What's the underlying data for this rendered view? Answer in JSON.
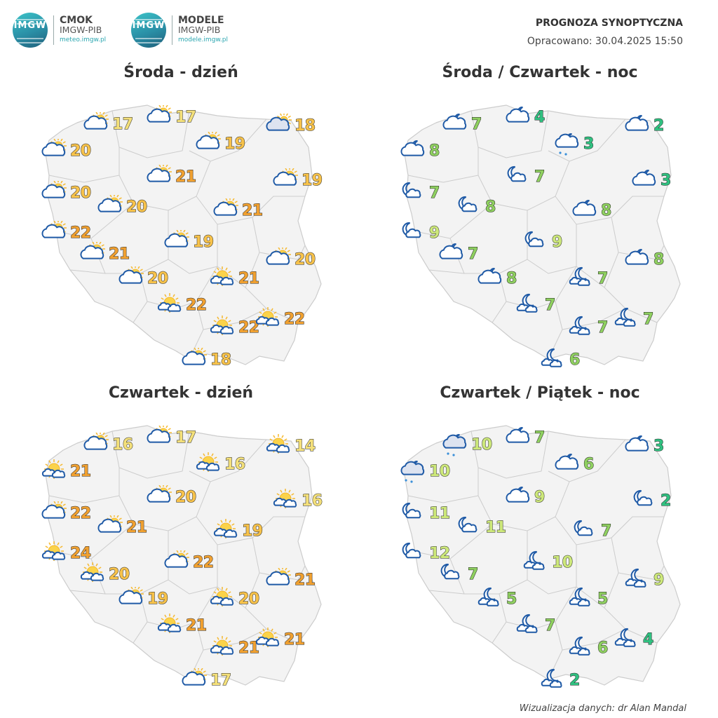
{
  "logos": [
    {
      "name": "CMOK",
      "sub": "IMGW-PIB",
      "url": "meteo.imgw.pl",
      "mark": "IMGW"
    },
    {
      "name": "MODELE",
      "sub": "IMGW-PIB",
      "url": "modele.imgw.pl",
      "mark": "IMGW"
    }
  ],
  "header": {
    "title": "PROGNOZA SYNOPTYCZNA",
    "date": "Opracowano: 30.04.2025 15:50"
  },
  "footer": {
    "credit": "Wizualizacja danych: dr Alan Mandal"
  },
  "colors": {
    "warm_light": "#f4e07a",
    "warm_mid": "#f7c24a",
    "warm_high": "#f0a030",
    "cool_light": "#cde87a",
    "cool_mid": "#8fd060",
    "cool_low": "#30c080",
    "map_fill": "#f3f3f3",
    "border": "#cccccc",
    "icon_blue": "#2f6fb8"
  },
  "panels": [
    {
      "title": "Środa - dzień",
      "stations": [
        {
          "icon": "cloud-sun",
          "t": "17"
        },
        {
          "icon": "cloud-sun",
          "t": "17"
        },
        {
          "icon": "cloud-sun-dark",
          "t": "18"
        },
        {
          "icon": "cloud-sun",
          "t": "20"
        },
        {
          "icon": "cloud-sun",
          "t": "19"
        },
        {
          "icon": "cloud-sun",
          "t": "21"
        },
        {
          "icon": "cloud-sun",
          "t": "19"
        },
        {
          "icon": "cloud-sun",
          "t": "20"
        },
        {
          "icon": "cloud-sun",
          "t": "20"
        },
        {
          "icon": "cloud-sun",
          "t": "21"
        },
        {
          "icon": "cloud-sun",
          "t": "22"
        },
        {
          "icon": "cloud-sun",
          "t": "21"
        },
        {
          "icon": "cloud-sun",
          "t": "19"
        },
        {
          "icon": "cloud-sun",
          "t": "20"
        },
        {
          "icon": "cloud-sun",
          "t": "20"
        },
        {
          "icon": "sun-small-clouds",
          "t": "21"
        },
        {
          "icon": "sun-small-clouds",
          "t": "22"
        },
        {
          "icon": "sun-small-clouds",
          "t": "22"
        },
        {
          "icon": "sun-small-clouds",
          "t": "22"
        },
        {
          "icon": "cloud-sun",
          "t": "18"
        }
      ]
    },
    {
      "title": "Środa / Czwartek - noc",
      "stations": [
        {
          "icon": "cloud-moon",
          "t": "7"
        },
        {
          "icon": "cloud-moon",
          "t": "4"
        },
        {
          "icon": "cloud-moon",
          "t": "2"
        },
        {
          "icon": "cloud-moon",
          "t": "8"
        },
        {
          "icon": "cloud-moon-rain",
          "t": "3"
        },
        {
          "icon": "moon-cloud",
          "t": "7"
        },
        {
          "icon": "cloud-moon",
          "t": "3"
        },
        {
          "icon": "moon-cloud",
          "t": "7"
        },
        {
          "icon": "moon-cloud",
          "t": "8"
        },
        {
          "icon": "cloud-moon",
          "t": "8"
        },
        {
          "icon": "moon-cloud",
          "t": "9"
        },
        {
          "icon": "cloud-moon",
          "t": "7"
        },
        {
          "icon": "moon-cloud",
          "t": "9"
        },
        {
          "icon": "cloud-moon",
          "t": "8"
        },
        {
          "icon": "cloud-moon",
          "t": "8"
        },
        {
          "icon": "moon-small-clouds",
          "t": "7"
        },
        {
          "icon": "moon-small-clouds",
          "t": "7"
        },
        {
          "icon": "moon-small-clouds",
          "t": "7"
        },
        {
          "icon": "moon-small-clouds",
          "t": "7"
        },
        {
          "icon": "moon-small-clouds",
          "t": "6"
        }
      ]
    },
    {
      "title": "Czwartek - dzień",
      "stations": [
        {
          "icon": "cloud-sun",
          "t": "16"
        },
        {
          "icon": "cloud-sun",
          "t": "17"
        },
        {
          "icon": "sun-small-clouds",
          "t": "14"
        },
        {
          "icon": "sun-small-clouds",
          "t": "21"
        },
        {
          "icon": "sun-small-clouds",
          "t": "16"
        },
        {
          "icon": "cloud-sun",
          "t": "20"
        },
        {
          "icon": "sun-small-clouds",
          "t": "16"
        },
        {
          "icon": "cloud-sun",
          "t": "22"
        },
        {
          "icon": "cloud-sun",
          "t": "21"
        },
        {
          "icon": "sun-small-clouds",
          "t": "19"
        },
        {
          "icon": "sun-small-clouds",
          "t": "24"
        },
        {
          "icon": "sun-small-clouds",
          "t": "20"
        },
        {
          "icon": "cloud-sun",
          "t": "22"
        },
        {
          "icon": "cloud-sun",
          "t": "19"
        },
        {
          "icon": "cloud-sun",
          "t": "21"
        },
        {
          "icon": "sun-small-clouds",
          "t": "20"
        },
        {
          "icon": "sun-small-clouds",
          "t": "21"
        },
        {
          "icon": "sun-small-clouds",
          "t": "21"
        },
        {
          "icon": "sun-small-clouds",
          "t": "21"
        },
        {
          "icon": "cloud-sun",
          "t": "17"
        }
      ]
    },
    {
      "title": "Czwartek / Piątek - noc",
      "stations": [
        {
          "icon": "cloud-moon-dark-rain",
          "t": "10"
        },
        {
          "icon": "cloud-moon",
          "t": "7"
        },
        {
          "icon": "cloud-moon",
          "t": "3"
        },
        {
          "icon": "cloud-moon-dark-rain",
          "t": "10"
        },
        {
          "icon": "cloud-moon",
          "t": "6"
        },
        {
          "icon": "cloud-moon",
          "t": "9"
        },
        {
          "icon": "moon-cloud",
          "t": "2"
        },
        {
          "icon": "moon-cloud",
          "t": "11"
        },
        {
          "icon": "moon-cloud",
          "t": "11"
        },
        {
          "icon": "moon-cloud",
          "t": "7"
        },
        {
          "icon": "moon-cloud",
          "t": "12"
        },
        {
          "icon": "moon-cloud",
          "t": "7"
        },
        {
          "icon": "moon-small-clouds",
          "t": "10"
        },
        {
          "icon": "moon-small-clouds",
          "t": "5"
        },
        {
          "icon": "moon-small-clouds",
          "t": "9"
        },
        {
          "icon": "moon-small-clouds",
          "t": "5"
        },
        {
          "icon": "moon-small-clouds",
          "t": "7"
        },
        {
          "icon": "moon-small-clouds",
          "t": "6"
        },
        {
          "icon": "moon-small-clouds",
          "t": "4"
        },
        {
          "icon": "moon-small-clouds",
          "t": "2"
        }
      ]
    }
  ]
}
